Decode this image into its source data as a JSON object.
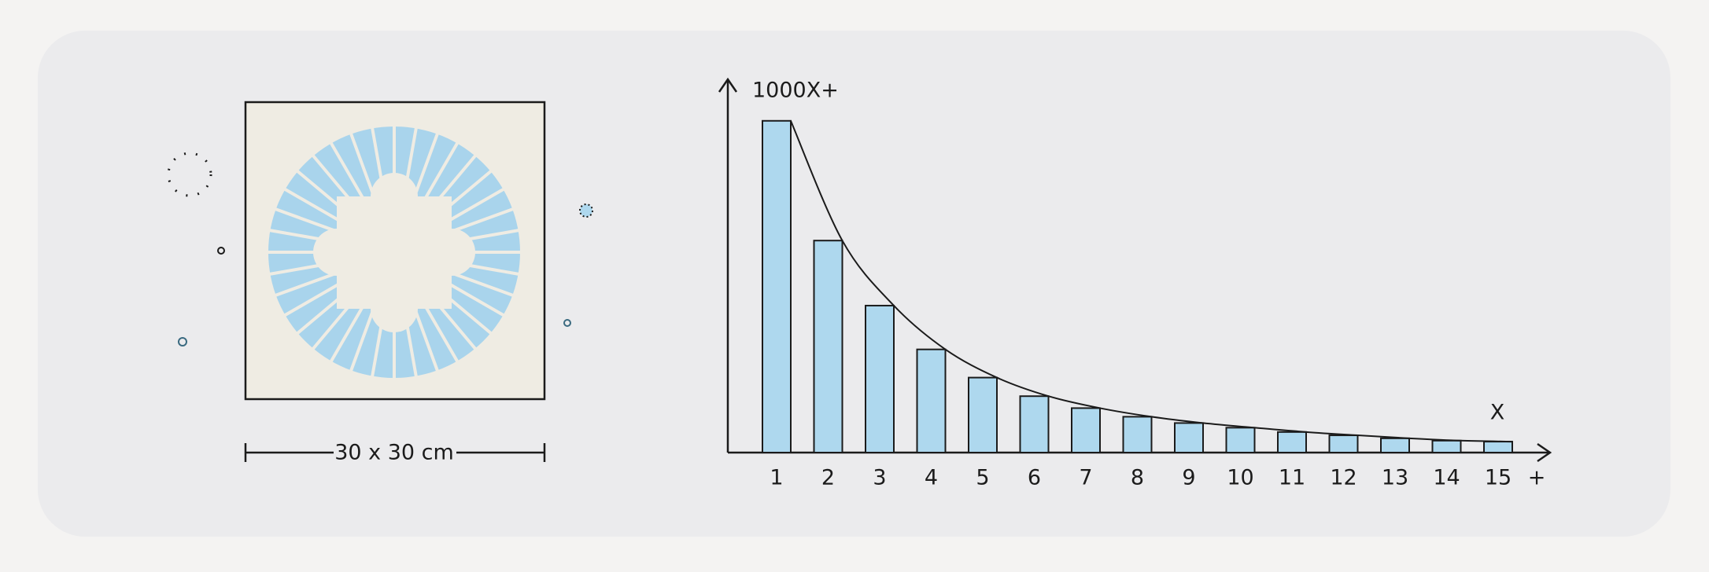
{
  "chart_data": {
    "type": "bar",
    "y_label": "1000X+",
    "x_end_label": "X",
    "x_axis_end_label": "+",
    "categories": [
      "1",
      "2",
      "3",
      "4",
      "5",
      "6",
      "7",
      "8",
      "9",
      "10",
      "11",
      "12",
      "13",
      "14",
      "15"
    ],
    "values": [
      1000,
      639,
      443,
      311,
      226,
      170,
      134,
      108,
      89,
      75,
      62,
      52,
      43,
      36,
      33
    ],
    "color": "#aed8ee",
    "ylim": [
      0,
      1125
    ],
    "trend_curve": true
  },
  "scale_label": "30 x 30 cm"
}
